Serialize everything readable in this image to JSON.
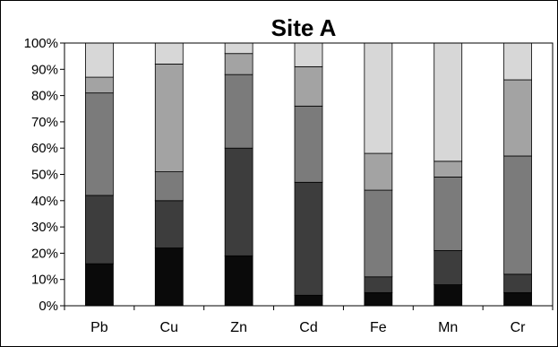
{
  "chart_data": {
    "type": "bar",
    "stacked": true,
    "title": "Site A",
    "xlabel": "",
    "ylabel": "",
    "ylim": [
      0,
      100
    ],
    "yticks": [
      "0%",
      "10%",
      "20%",
      "30%",
      "40%",
      "50%",
      "60%",
      "70%",
      "80%",
      "90%",
      "100%"
    ],
    "categories": [
      "Pb",
      "Cu",
      "Zn",
      "Cd",
      "Fe",
      "Mn",
      "Cr"
    ],
    "grid": false,
    "legend": "none",
    "series": [
      {
        "color": "#0a0a0a",
        "values": [
          16,
          22,
          19,
          4,
          5,
          8,
          5
        ]
      },
      {
        "color": "#3d3d3d",
        "values": [
          26,
          18,
          41,
          43,
          6,
          13,
          7
        ]
      },
      {
        "color": "#7b7b7b",
        "values": [
          39,
          11,
          28,
          29,
          33,
          28,
          45
        ]
      },
      {
        "color": "#a3a3a3",
        "values": [
          6,
          41,
          8,
          15,
          14,
          6,
          29
        ]
      },
      {
        "color": "#d7d7d7",
        "values": [
          13,
          8,
          4,
          9,
          42,
          45,
          14
        ]
      }
    ]
  }
}
